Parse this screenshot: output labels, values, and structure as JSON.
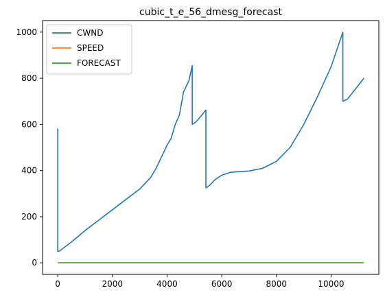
{
  "chart_data": {
    "type": "line",
    "title": "cubic_t_e_56_dmesg_forecast",
    "xlabel": "",
    "ylabel": "",
    "xlim": [
      -555,
      11745
    ],
    "ylim": [
      -50,
      1050
    ],
    "xticks": [
      0,
      2000,
      4000,
      6000,
      8000,
      10000
    ],
    "yticks": [
      0,
      200,
      400,
      600,
      800,
      1000
    ],
    "xtick_labels": [
      "0",
      "2000",
      "4000",
      "6000",
      "8000",
      "10000"
    ],
    "ytick_labels": [
      "0",
      "200",
      "400",
      "600",
      "800",
      "1000"
    ],
    "grid": false,
    "legend_position": "top-left",
    "series": [
      {
        "name": "CWND",
        "color": "#1f77b4",
        "points": [
          [
            0,
            582
          ],
          [
            0,
            50
          ],
          [
            50,
            50
          ],
          [
            500,
            90
          ],
          [
            1000,
            140
          ],
          [
            1500,
            185
          ],
          [
            2000,
            230
          ],
          [
            2500,
            275
          ],
          [
            3000,
            320
          ],
          [
            3400,
            370
          ],
          [
            3600,
            410
          ],
          [
            3800,
            460
          ],
          [
            4000,
            510
          ],
          [
            4150,
            540
          ],
          [
            4300,
            600
          ],
          [
            4450,
            640
          ],
          [
            4600,
            740
          ],
          [
            4800,
            790
          ],
          [
            4920,
            855
          ],
          [
            4920,
            600
          ],
          [
            5050,
            610
          ],
          [
            5200,
            630
          ],
          [
            5300,
            645
          ],
          [
            5420,
            662
          ],
          [
            5420,
            325
          ],
          [
            5550,
            335
          ],
          [
            5750,
            360
          ],
          [
            6000,
            380
          ],
          [
            6300,
            392
          ],
          [
            6600,
            395
          ],
          [
            7000,
            398
          ],
          [
            7500,
            410
          ],
          [
            8000,
            440
          ],
          [
            8500,
            500
          ],
          [
            9000,
            600
          ],
          [
            9500,
            720
          ],
          [
            10000,
            850
          ],
          [
            10430,
            1000
          ],
          [
            10430,
            700
          ],
          [
            10600,
            710
          ],
          [
            10900,
            755
          ],
          [
            11200,
            800
          ]
        ]
      },
      {
        "name": "SPEED",
        "color": "#ff7f0e",
        "points": [
          [
            0,
            0
          ],
          [
            11200,
            0
          ]
        ]
      },
      {
        "name": "FORECAST",
        "color": "#2ca02c",
        "points": [
          [
            0,
            0
          ],
          [
            11200,
            0
          ]
        ]
      }
    ]
  }
}
